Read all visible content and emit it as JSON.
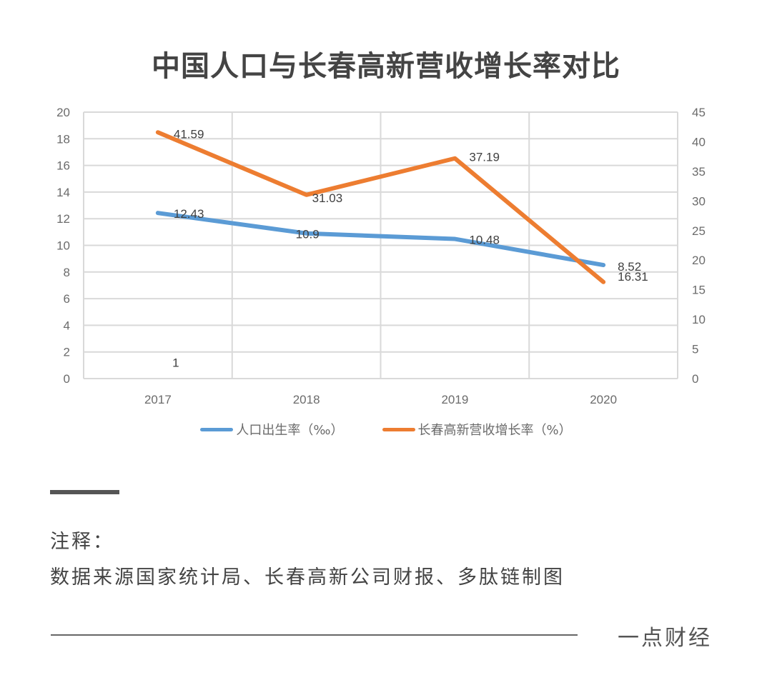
{
  "title": "中国人口与长春高新营收增长率对比",
  "chart_data": {
    "type": "line",
    "title": "中国人口与长春高新营收增长率对比",
    "categories": [
      "2017",
      "2018",
      "2019",
      "2020"
    ],
    "series": [
      {
        "name": "人口出生率（‰）",
        "axis": "left",
        "color": "#5B9BD5",
        "values": [
          12.43,
          10.9,
          10.48,
          8.52
        ],
        "labels": [
          "12.43",
          "10.9",
          "10.48",
          "8.52"
        ]
      },
      {
        "name": "长春高新营收增长率（%）",
        "axis": "right",
        "color": "#ED7D31",
        "values": [
          41.59,
          31.03,
          37.19,
          16.31
        ],
        "labels": [
          "41.59",
          "31.03",
          "37.19",
          "16.31"
        ]
      }
    ],
    "annotations": [
      {
        "text": "1",
        "category": "2017",
        "near_y_left": 1
      }
    ],
    "left_axis": {
      "min": 0,
      "max": 20,
      "step": 2,
      "ticks": [
        "0",
        "2",
        "4",
        "6",
        "8",
        "10",
        "12",
        "14",
        "16",
        "18",
        "20"
      ]
    },
    "right_axis": {
      "min": 0,
      "max": 45,
      "step": 5,
      "ticks": [
        "0",
        "5",
        "10",
        "15",
        "20",
        "25",
        "30",
        "35",
        "40",
        "45"
      ]
    },
    "xlabel": "",
    "ylabel_left": "",
    "ylabel_right": "",
    "grid": true,
    "legend_position": "bottom"
  },
  "legend": {
    "items": [
      {
        "label": "人口出生率（‰）",
        "color": "#5B9BD5"
      },
      {
        "label": "长春高新营收增长率（%）",
        "color": "#ED7D31"
      }
    ]
  },
  "notes": {
    "heading": "注释：",
    "body": "数据来源国家统计局、长春高新公司财报、多肽链制图"
  },
  "byline": "一点财经"
}
